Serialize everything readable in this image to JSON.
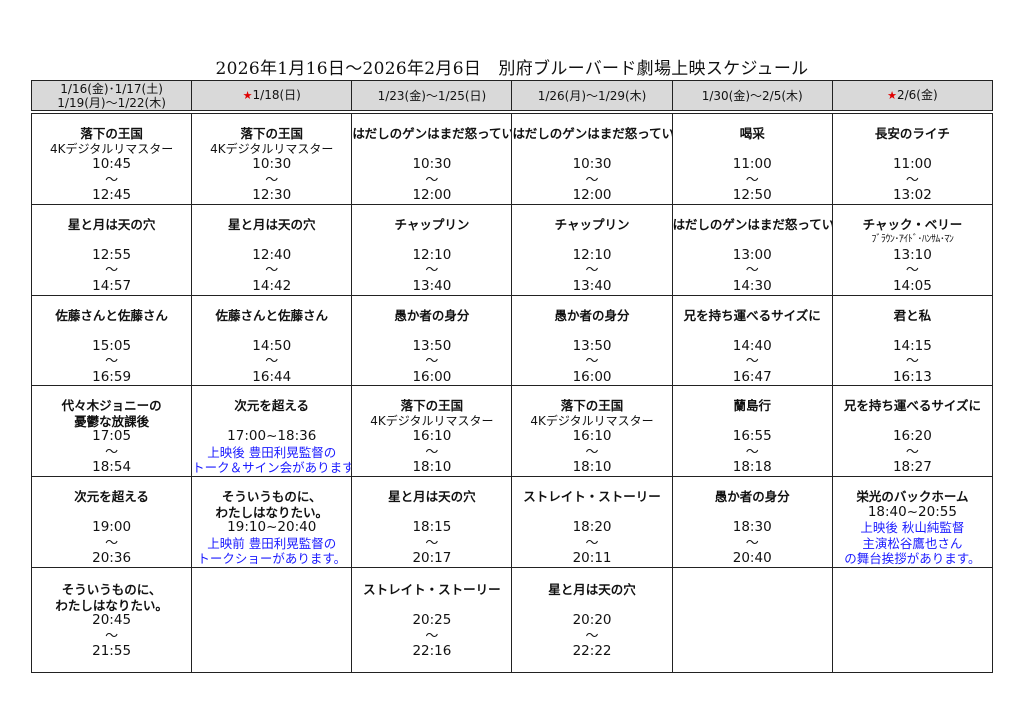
{
  "title": "2026年1月16日～2026年2月6日　別府ブルーバード劇場上映スケジュール",
  "colors": {
    "header_bg": "#d9d9d9",
    "note": "#1a1aff",
    "star": "#e00000"
  },
  "headers": [
    {
      "star": false,
      "lines": [
        "1/16(金)･1/17(土)",
        "1/19(月)～1/22(木)"
      ]
    },
    {
      "star": true,
      "lines": [
        "1/18(日)"
      ]
    },
    {
      "star": false,
      "lines": [
        "1/23(金)～1/25(日)"
      ]
    },
    {
      "star": false,
      "lines": [
        "1/26(月)～1/29(木)"
      ]
    },
    {
      "star": false,
      "lines": [
        "1/30(金)～2/5(木)"
      ]
    },
    {
      "star": true,
      "lines": [
        "2/6(金)"
      ]
    }
  ],
  "star_glyph": "★",
  "rows": [
    [
      [
        [
          "title",
          "落下の王国"
        ],
        [
          "sub",
          "4Kデジタルリマスター"
        ],
        [
          "time",
          "10:45"
        ],
        [
          "tilde",
          "～"
        ],
        [
          "time",
          "12:45"
        ]
      ],
      [
        [
          "title",
          "落下の王国"
        ],
        [
          "sub",
          "4Kデジタルリマスター"
        ],
        [
          "time",
          "10:30"
        ],
        [
          "tilde",
          "～"
        ],
        [
          "time",
          "12:30"
        ]
      ],
      [
        [
          "title",
          "はだしのゲンはまだ怒っている"
        ],
        [
          "blank",
          ""
        ],
        [
          "time",
          "10:30"
        ],
        [
          "tilde",
          "～"
        ],
        [
          "time",
          "12:00"
        ]
      ],
      [
        [
          "title",
          "はだしのゲンはまだ怒っている"
        ],
        [
          "blank",
          ""
        ],
        [
          "time",
          "10:30"
        ],
        [
          "tilde",
          "～"
        ],
        [
          "time",
          "12:00"
        ]
      ],
      [
        [
          "title",
          "喝采"
        ],
        [
          "blank",
          ""
        ],
        [
          "time",
          "11:00"
        ],
        [
          "tilde",
          "～"
        ],
        [
          "time",
          "12:50"
        ]
      ],
      [
        [
          "title",
          "長安のライチ"
        ],
        [
          "blank",
          ""
        ],
        [
          "time",
          "11:00"
        ],
        [
          "tilde",
          "～"
        ],
        [
          "time",
          "13:02"
        ]
      ]
    ],
    [
      [
        [
          "title",
          "星と月は天の穴"
        ],
        [
          "blank",
          ""
        ],
        [
          "time",
          "12:55"
        ],
        [
          "tilde",
          "～"
        ],
        [
          "time",
          "14:57"
        ]
      ],
      [
        [
          "title",
          "星と月は天の穴"
        ],
        [
          "blank",
          ""
        ],
        [
          "time",
          "12:40"
        ],
        [
          "tilde",
          "～"
        ],
        [
          "time",
          "14:42"
        ]
      ],
      [
        [
          "title",
          "チャップリン"
        ],
        [
          "blank",
          ""
        ],
        [
          "time",
          "12:10"
        ],
        [
          "tilde",
          "～"
        ],
        [
          "time",
          "13:40"
        ]
      ],
      [
        [
          "title",
          "チャップリン"
        ],
        [
          "blank",
          ""
        ],
        [
          "time",
          "12:10"
        ],
        [
          "tilde",
          "～"
        ],
        [
          "time",
          "13:40"
        ]
      ],
      [
        [
          "title",
          "はだしのゲンはまだ怒っている"
        ],
        [
          "blank",
          ""
        ],
        [
          "time",
          "13:00"
        ],
        [
          "tilde",
          "～"
        ],
        [
          "time",
          "14:30"
        ]
      ],
      [
        [
          "title",
          "チャック・ベリー"
        ],
        [
          "small",
          "ﾌﾞﾗｳﾝ･ｱｲﾄﾞ･ﾊﾝｻﾑ･ﾏﾝ"
        ],
        [
          "time",
          "13:10"
        ],
        [
          "tilde",
          "～"
        ],
        [
          "time",
          "14:05"
        ]
      ]
    ],
    [
      [
        [
          "title",
          "佐藤さんと佐藤さん"
        ],
        [
          "blank",
          ""
        ],
        [
          "time",
          "15:05"
        ],
        [
          "tilde",
          "～"
        ],
        [
          "time",
          "16:59"
        ]
      ],
      [
        [
          "title",
          "佐藤さんと佐藤さん"
        ],
        [
          "blank",
          ""
        ],
        [
          "time",
          "14:50"
        ],
        [
          "tilde",
          "～"
        ],
        [
          "time",
          "16:44"
        ]
      ],
      [
        [
          "title",
          "愚か者の身分"
        ],
        [
          "blank",
          ""
        ],
        [
          "time",
          "13:50"
        ],
        [
          "tilde",
          "～"
        ],
        [
          "time",
          "16:00"
        ]
      ],
      [
        [
          "title",
          "愚か者の身分"
        ],
        [
          "blank",
          ""
        ],
        [
          "time",
          "13:50"
        ],
        [
          "tilde",
          "～"
        ],
        [
          "time",
          "16:00"
        ]
      ],
      [
        [
          "title",
          "兄を持ち運べるサイズに"
        ],
        [
          "blank",
          ""
        ],
        [
          "time",
          "14:40"
        ],
        [
          "tilde",
          "～"
        ],
        [
          "time",
          "16:47"
        ]
      ],
      [
        [
          "title",
          "君と私"
        ],
        [
          "blank",
          ""
        ],
        [
          "time",
          "14:15"
        ],
        [
          "tilde",
          "～"
        ],
        [
          "time",
          "16:13"
        ]
      ]
    ],
    [
      [
        [
          "title",
          "代々木ジョニーの"
        ],
        [
          "title",
          "憂鬱な放課後"
        ],
        [
          "time",
          "17:05"
        ],
        [
          "tilde",
          "～"
        ],
        [
          "time",
          "18:54"
        ]
      ],
      [
        [
          "title",
          "次元を超える"
        ],
        [
          "blank",
          ""
        ],
        [
          "time",
          "17:00~18:36"
        ],
        [
          "note",
          "上映後 豊田利晃監督の"
        ],
        [
          "note",
          "トーク＆サイン会があります。"
        ]
      ],
      [
        [
          "title",
          "落下の王国"
        ],
        [
          "sub",
          "4Kデジタルリマスター"
        ],
        [
          "time",
          "16:10"
        ],
        [
          "tilde",
          "～"
        ],
        [
          "time",
          "18:10"
        ]
      ],
      [
        [
          "title",
          "落下の王国"
        ],
        [
          "sub",
          "4Kデジタルリマスター"
        ],
        [
          "time",
          "16:10"
        ],
        [
          "tilde",
          "～"
        ],
        [
          "time",
          "18:10"
        ]
      ],
      [
        [
          "title",
          "蘭島行"
        ],
        [
          "blank",
          ""
        ],
        [
          "time",
          "16:55"
        ],
        [
          "tilde",
          "～"
        ],
        [
          "time",
          "18:18"
        ]
      ],
      [
        [
          "title",
          "兄を持ち運べるサイズに"
        ],
        [
          "blank",
          ""
        ],
        [
          "time",
          "16:20"
        ],
        [
          "tilde",
          "～"
        ],
        [
          "time",
          "18:27"
        ]
      ]
    ],
    [
      [
        [
          "title",
          "次元を超える"
        ],
        [
          "blank",
          ""
        ],
        [
          "time",
          "19:00"
        ],
        [
          "tilde",
          "～"
        ],
        [
          "time",
          "20:36"
        ]
      ],
      [
        [
          "title",
          "そういうものに、"
        ],
        [
          "title",
          "わたしはなりたい。"
        ],
        [
          "time",
          "19:10~20:40"
        ],
        [
          "note",
          "上映前 豊田利晃監督の"
        ],
        [
          "note",
          "トークショーがあります。"
        ]
      ],
      [
        [
          "title",
          "星と月は天の穴"
        ],
        [
          "blank",
          ""
        ],
        [
          "time",
          "18:15"
        ],
        [
          "tilde",
          "～"
        ],
        [
          "time",
          "20:17"
        ]
      ],
      [
        [
          "title",
          "ストレイト・ストーリー"
        ],
        [
          "blank",
          ""
        ],
        [
          "time",
          "18:20"
        ],
        [
          "tilde",
          "～"
        ],
        [
          "time",
          "20:11"
        ]
      ],
      [
        [
          "title",
          "愚か者の身分"
        ],
        [
          "blank",
          ""
        ],
        [
          "time",
          "18:30"
        ],
        [
          "tilde",
          "～"
        ],
        [
          "time",
          "20:40"
        ]
      ],
      [
        [
          "title",
          "栄光のバックホーム"
        ],
        [
          "time",
          "18:40~20:55"
        ],
        [
          "note",
          "上映後 秋山純監督"
        ],
        [
          "note",
          "主演松谷鷹也さん"
        ],
        [
          "note",
          "の舞台挨拶があります。"
        ]
      ]
    ],
    [
      [
        [
          "title",
          "そういうものに、"
        ],
        [
          "title",
          "わたしはなりたい。"
        ],
        [
          "time",
          "20:45"
        ],
        [
          "tilde",
          "～"
        ],
        [
          "time",
          "21:55"
        ]
      ],
      [],
      [
        [
          "title",
          "ストレイト・ストーリー"
        ],
        [
          "blank",
          ""
        ],
        [
          "time",
          "20:25"
        ],
        [
          "tilde",
          "～"
        ],
        [
          "time",
          "22:16"
        ]
      ],
      [
        [
          "title",
          "星と月は天の穴"
        ],
        [
          "blank",
          ""
        ],
        [
          "time",
          "20:20"
        ],
        [
          "tilde",
          "～"
        ],
        [
          "time",
          "22:22"
        ]
      ],
      [],
      []
    ]
  ]
}
